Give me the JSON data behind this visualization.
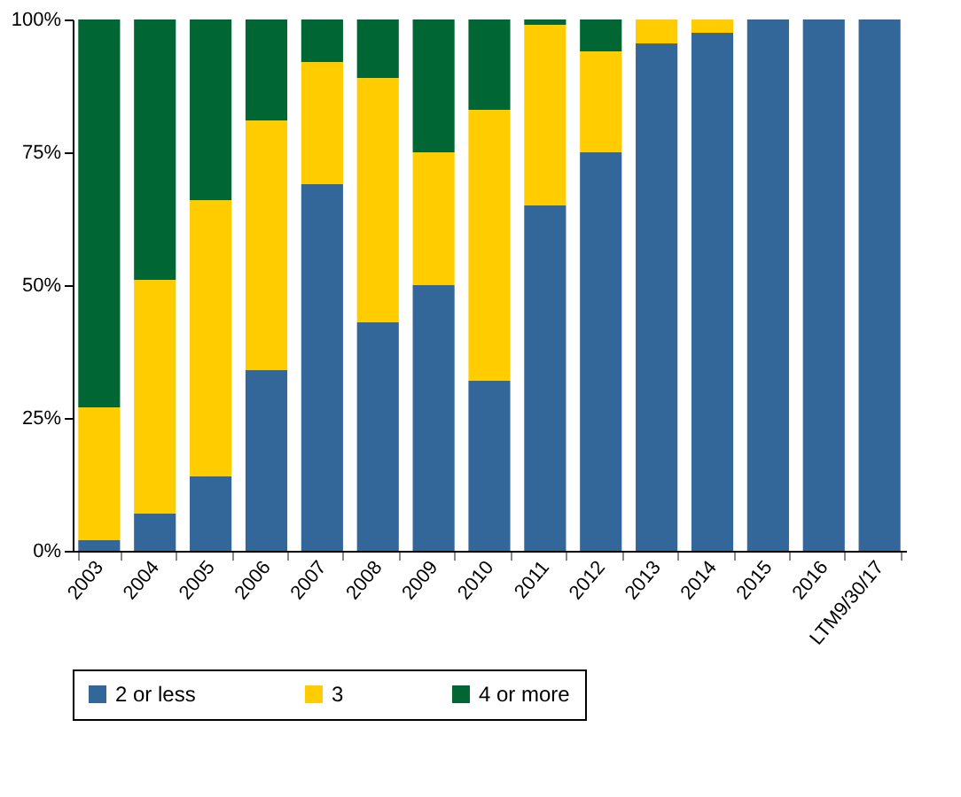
{
  "chart_data": {
    "type": "bar",
    "stacked": true,
    "categories": [
      "2003",
      "2004",
      "2005",
      "2006",
      "2007",
      "2008",
      "2009",
      "2010",
      "2011",
      "2012",
      "2013",
      "2014",
      "2015",
      "2016",
      "LTM9/30/17"
    ],
    "series": [
      {
        "name": "2 or less",
        "color": "#336699",
        "values": [
          2,
          7,
          14,
          34,
          69,
          43,
          50,
          32,
          65,
          75,
          95.5,
          97.5,
          100,
          100,
          100
        ]
      },
      {
        "name": "3",
        "color": "#ffcc00",
        "values": [
          25,
          44,
          52,
          47,
          23,
          46,
          25,
          51,
          34,
          19,
          4.5,
          2.5,
          0,
          0,
          0
        ]
      },
      {
        "name": "4 or more",
        "color": "#006633",
        "values": [
          73,
          49,
          34,
          19,
          8,
          11,
          25,
          17,
          1,
          6,
          0,
          0,
          0,
          0,
          0
        ]
      }
    ],
    "ylim": [
      0,
      100
    ],
    "yticks": [
      {
        "value": 0,
        "label": "0%"
      },
      {
        "value": 25,
        "label": "25%"
      },
      {
        "value": 50,
        "label": "50%"
      },
      {
        "value": 75,
        "label": "75%"
      },
      {
        "value": 100,
        "label": "100%"
      }
    ],
    "grid": false,
    "legend": "bottom"
  }
}
